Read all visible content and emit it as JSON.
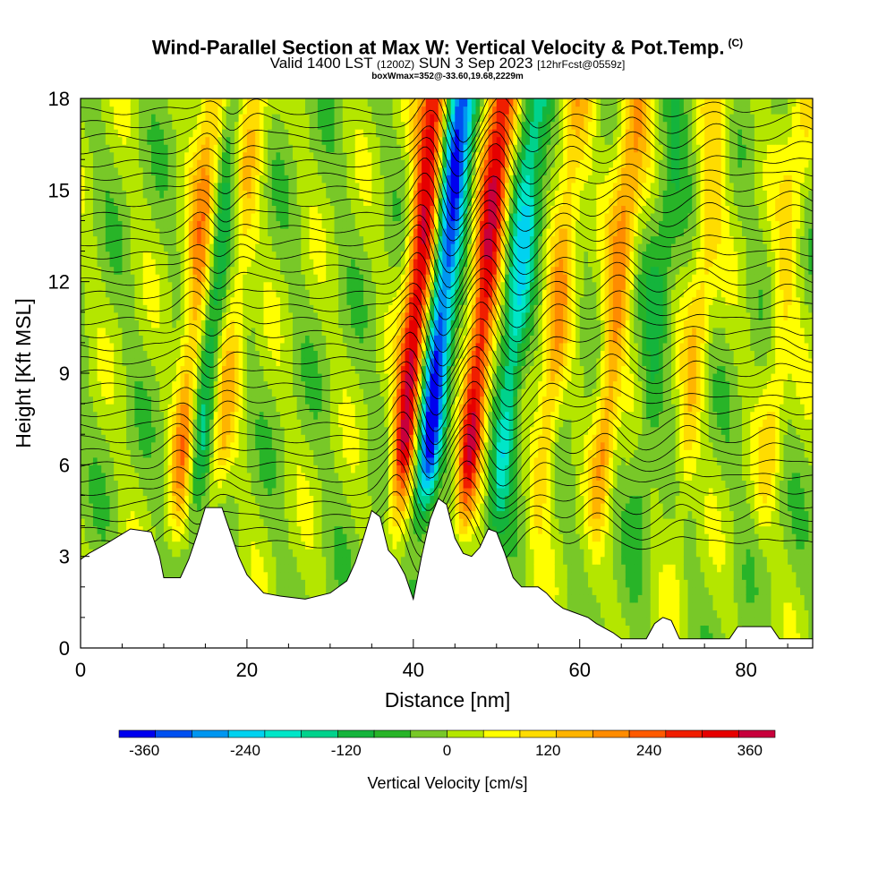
{
  "header": {
    "title": "Wind-Parallel Section at Max W: Vertical Velocity & Pot.Temp.",
    "copyright": "(C)",
    "valid_prefix": "Valid 1400 LST",
    "valid_utc": "(1200Z)",
    "valid_date": "SUN 3 Sep 2023",
    "forecast": "[12hrFcst@0559z]",
    "box_info": "boxWmax=352@-33.60,19.68,2229m"
  },
  "chart_data": {
    "type": "heatmap",
    "title": "Wind-Parallel Section at Max W: Vertical Velocity & Pot.Temp.",
    "xlabel": "Distance [nm]",
    "ylabel": "Height [Kft MSL]",
    "xlim": [
      0,
      88
    ],
    "ylim": [
      0,
      18
    ],
    "xticks": [
      0,
      20,
      40,
      60,
      80
    ],
    "yticks": [
      0,
      3,
      6,
      9,
      12,
      15,
      18
    ],
    "colorbar": {
      "label": "Vertical Velocity [cm/s]",
      "range": [
        -390,
        390
      ],
      "tick_values": [
        -360,
        -240,
        -120,
        0,
        120,
        240,
        360
      ],
      "colors": [
        "#0000ee",
        "#0050f0",
        "#0096f0",
        "#00d2f0",
        "#00e6c8",
        "#00d28c",
        "#14b43c",
        "#28b428",
        "#78c828",
        "#b4e600",
        "#ffff00",
        "#ffdc00",
        "#ffb400",
        "#ff8c00",
        "#ff5a00",
        "#f01e00",
        "#e60000",
        "#c8003c"
      ]
    },
    "features": [
      {
        "kind": "updraft",
        "x": 11.5,
        "w_peak": 200
      },
      {
        "kind": "downdraft",
        "x": 13.5,
        "w_peak": -150
      },
      {
        "kind": "updraft",
        "x": 16,
        "w_peak": 120
      },
      {
        "kind": "updraft",
        "x": 38,
        "w_peak": 352
      },
      {
        "kind": "downdraft",
        "x": 41,
        "w_peak": -360
      },
      {
        "kind": "updraft",
        "x": 46,
        "w_peak": 330
      },
      {
        "kind": "downdraft",
        "x": 50,
        "w_peak": -200
      },
      {
        "kind": "updraft",
        "x": 55,
        "w_peak": 150
      },
      {
        "kind": "updraft",
        "x": 62,
        "w_peak": 180
      },
      {
        "kind": "downdraft",
        "x": 67,
        "w_peak": -80
      },
      {
        "kind": "updraft",
        "x": 72,
        "w_peak": 110
      },
      {
        "kind": "updraft",
        "x": 82,
        "w_peak": 90
      }
    ],
    "terrain": [
      [
        0,
        2.9
      ],
      [
        1,
        3.1
      ],
      [
        3,
        3.4
      ],
      [
        6,
        3.9
      ],
      [
        8.5,
        3.8
      ],
      [
        9.5,
        3.0
      ],
      [
        10,
        2.3
      ],
      [
        12,
        2.3
      ],
      [
        13,
        2.9
      ],
      [
        14,
        3.7
      ],
      [
        15,
        4.6
      ],
      [
        17,
        4.6
      ],
      [
        18,
        3.8
      ],
      [
        19,
        3.0
      ],
      [
        20,
        2.4
      ],
      [
        21,
        2.1
      ],
      [
        22,
        1.8
      ],
      [
        24,
        1.7
      ],
      [
        27,
        1.6
      ],
      [
        30,
        1.8
      ],
      [
        32,
        2.2
      ],
      [
        33,
        2.8
      ],
      [
        34,
        3.6
      ],
      [
        35,
        4.5
      ],
      [
        36,
        4.3
      ],
      [
        37,
        3.2
      ],
      [
        38,
        2.9
      ],
      [
        39,
        2.4
      ],
      [
        40,
        1.6
      ],
      [
        41,
        3.0
      ],
      [
        42,
        4.2
      ],
      [
        43,
        4.9
      ],
      [
        44,
        4.7
      ],
      [
        45,
        3.6
      ],
      [
        46,
        3.1
      ],
      [
        47,
        3.0
      ],
      [
        48,
        3.3
      ],
      [
        49,
        3.9
      ],
      [
        50,
        3.8
      ],
      [
        51,
        3.1
      ],
      [
        52,
        2.3
      ],
      [
        53,
        2.0
      ],
      [
        55,
        2.0
      ],
      [
        56,
        1.8
      ],
      [
        57,
        1.5
      ],
      [
        58,
        1.3
      ],
      [
        59,
        1.2
      ],
      [
        61,
        1.0
      ],
      [
        62,
        0.8
      ],
      [
        64,
        0.5
      ],
      [
        65,
        0.3
      ],
      [
        68,
        0.3
      ],
      [
        69,
        0.8
      ],
      [
        70,
        1.0
      ],
      [
        71,
        0.9
      ],
      [
        72,
        0.3
      ],
      [
        78,
        0.3
      ],
      [
        79,
        0.7
      ],
      [
        83,
        0.7
      ],
      [
        84,
        0.3
      ],
      [
        88,
        0.3
      ]
    ]
  }
}
